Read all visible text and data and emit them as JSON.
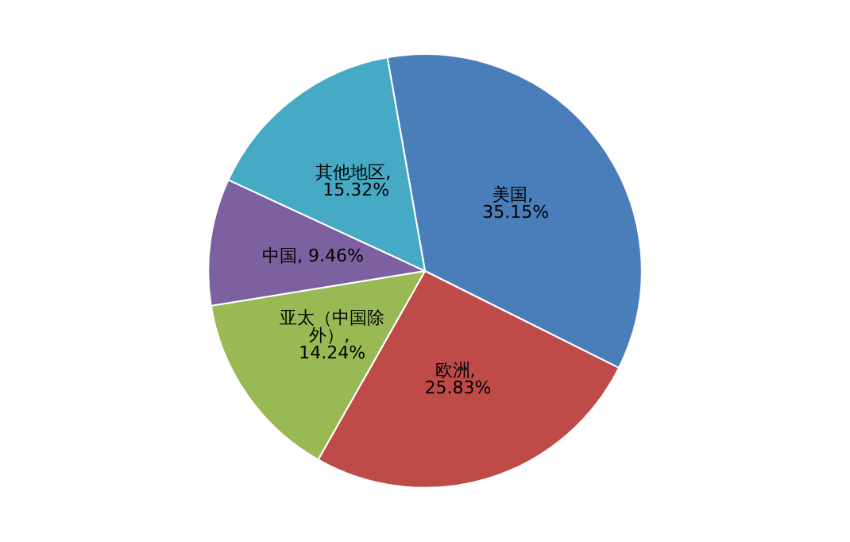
{
  "chart_data": {
    "type": "pie",
    "categories": [
      "美国",
      "欧洲",
      "亚太（中国除外）",
      "中国",
      "其他地区"
    ],
    "values": [
      35.15,
      25.83,
      14.24,
      9.46,
      15.32
    ],
    "colors": [
      "#4a7ebb",
      "#be4b48",
      "#98b954",
      "#7d60a0",
      "#46aac5"
    ],
    "value_labels": [
      ", 35.15%",
      ", 25.83%",
      ", 14.24%",
      ", 9.46%",
      ", 15.32%"
    ],
    "legend": false
  }
}
